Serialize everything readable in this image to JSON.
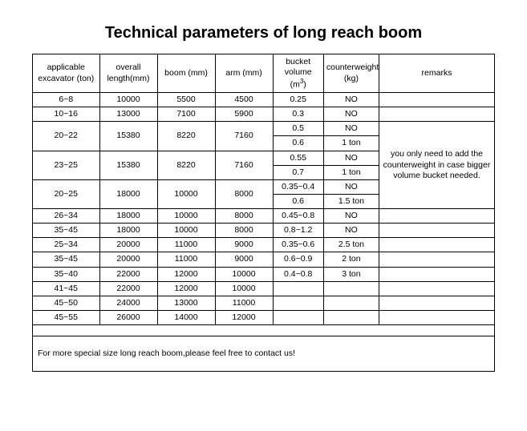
{
  "title": "Technical parameters of long reach boom",
  "headers": {
    "c1": "applicable excavator (ton)",
    "c2": "overall length(mm)",
    "c3": "boom (mm)",
    "c4": "arm (mm)",
    "c5_pre": "bucket volume (m",
    "c5_sup": "3",
    "c5_post": ")",
    "c6": "counterweight (kg)",
    "c7": "remarks"
  },
  "rows": {
    "r1": {
      "excavator": "6~8",
      "length": "10000",
      "boom": "5500",
      "arm": "4500",
      "bucket": "0.25",
      "cw": "NO"
    },
    "r2": {
      "excavator": "10~16",
      "length": "13000",
      "boom": "7100",
      "arm": "5900",
      "bucket": "0.3",
      "cw": "NO"
    },
    "r3a": {
      "excavator": "20~22",
      "length": "15380",
      "boom": "8220",
      "arm": "7160",
      "bucket": "0.5",
      "cw": "NO"
    },
    "r3b": {
      "bucket": "0.6",
      "cw": "1 ton"
    },
    "r4a": {
      "excavator": "23~25",
      "length": "15380",
      "boom": "8220",
      "arm": "7160",
      "bucket": "0.55",
      "cw": "NO"
    },
    "r4b": {
      "bucket": "0.7",
      "cw": "1 ton"
    },
    "r5a": {
      "excavator": "20~25",
      "length": "18000",
      "boom": "10000",
      "arm": "8000",
      "bucket": "0.35~0.4",
      "cw": "NO"
    },
    "r5b": {
      "bucket": "0.6",
      "cw": "1.5 ton"
    },
    "r6": {
      "excavator": "26~34",
      "length": "18000",
      "boom": "10000",
      "arm": "8000",
      "bucket": "0.45~0.8",
      "cw": "NO"
    },
    "r7": {
      "excavator": "35~45",
      "length": "18000",
      "boom": "10000",
      "arm": "8000",
      "bucket": "0.8~1.2",
      "cw": "NO"
    },
    "r8": {
      "excavator": "25~34",
      "length": "20000",
      "boom": "11000",
      "arm": "9000",
      "bucket": "0.35~0.6",
      "cw": "2.5 ton"
    },
    "r9": {
      "excavator": "35~45",
      "length": "20000",
      "boom": "11000",
      "arm": "9000",
      "bucket": "0.6~0.9",
      "cw": "2 ton"
    },
    "r10": {
      "excavator": "35~40",
      "length": "22000",
      "boom": "12000",
      "arm": "10000",
      "bucket": "0.4~0.8",
      "cw": "3 ton"
    },
    "r11": {
      "excavator": "41~45",
      "length": "22000",
      "boom": "12000",
      "arm": "10000",
      "bucket": "",
      "cw": ""
    },
    "r12": {
      "excavator": "45~50",
      "length": "24000",
      "boom": "13000",
      "arm": "11000",
      "bucket": "",
      "cw": ""
    },
    "r13": {
      "excavator": "45~55",
      "length": "26000",
      "boom": "14000",
      "arm": "12000",
      "bucket": "",
      "cw": ""
    }
  },
  "remarks_text": "you only need to add the counterweight in case bigger volume bucket needed.",
  "footer": "For more special size long reach boom,please feel free to contact us!"
}
